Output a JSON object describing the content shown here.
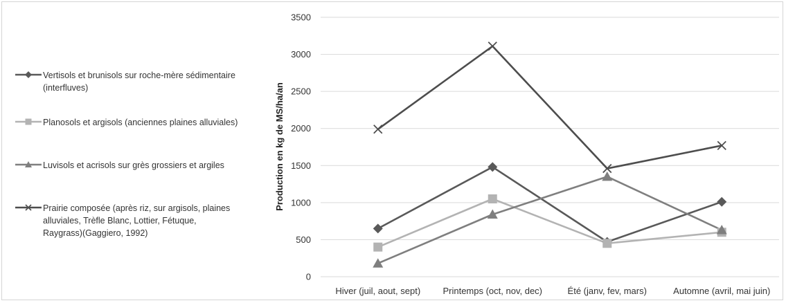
{
  "chart_data": {
    "type": "line",
    "categories": [
      "Hiver (juil, aout, sept)",
      "Printemps (oct, nov, dec)",
      "Été (janv, fev, mars)",
      "Automne (avril, mai juin)"
    ],
    "series": [
      {
        "name": "Vertisols et brunisols sur roche-mère sédimentaire (interfluves)",
        "legend_lines": [
          "Vertisols et brunisols sur roche-mère sédimentaire",
          "(interfluves)"
        ],
        "values": [
          650,
          1480,
          470,
          1010
        ],
        "color": "#595959",
        "marker": "diamond"
      },
      {
        "name": "Planosols et argisols (anciennes plaines alluviales)",
        "legend_lines": [
          "Planosols et argisols (anciennes plaines alluviales)"
        ],
        "values": [
          400,
          1050,
          450,
          600
        ],
        "color": "#b3b3b3",
        "marker": "square"
      },
      {
        "name": "Luvisols et acrisols sur grès grossiers et argiles",
        "legend_lines": [
          "Luvisols et acrisols sur grès grossiers et argiles"
        ],
        "values": [
          180,
          840,
          1350,
          630
        ],
        "color": "#7f7f7f",
        "marker": "triangle"
      },
      {
        "name": "Prairie composée (après riz, sur argisols, plaines alluviales, Trèfle Blanc, Lottier, Fétuque, Raygrass)(Gaggiero, 1992)",
        "legend_lines": [
          "Prairie composée (après riz, sur argisols, plaines",
          "alluviales, Trèfle Blanc, Lottier, Fétuque,",
          "Raygrass)(Gaggiero, 1992)"
        ],
        "values": [
          1990,
          3110,
          1460,
          1770
        ],
        "color": "#4d4d4d",
        "marker": "x"
      }
    ],
    "ylabel": "Production  en kg de MS/ha/an",
    "xlabel": "",
    "ylim": [
      0,
      3500
    ],
    "yticks": [
      0,
      500,
      1000,
      1500,
      2000,
      2500,
      3000,
      3500
    ],
    "grid": true,
    "legend_position": "left"
  }
}
